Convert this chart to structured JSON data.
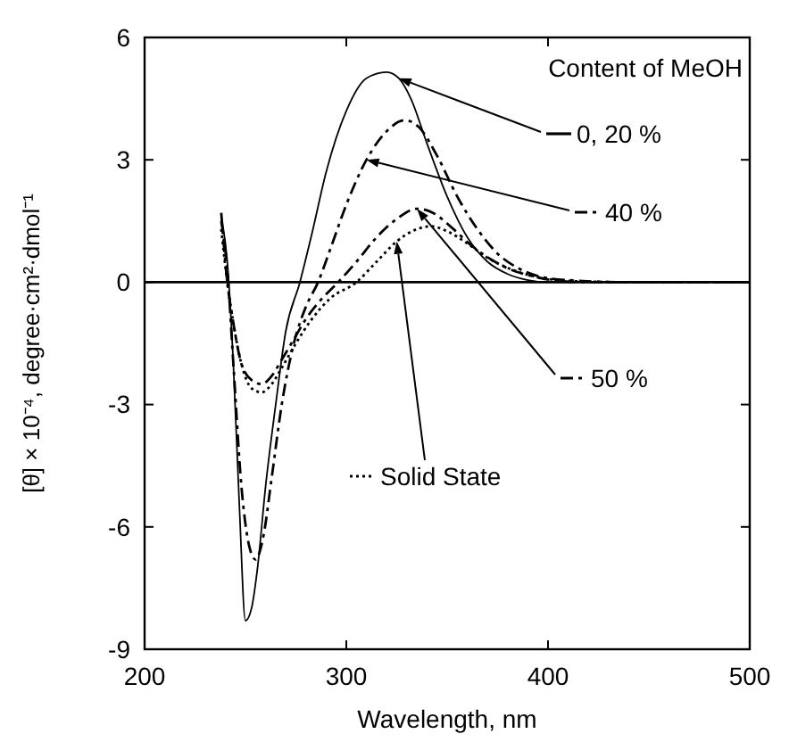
{
  "chart_data": {
    "type": "line",
    "xlabel": "Wavelength, nm",
    "ylabel": "[θ] × 10⁻⁴, degree·cm²·dmol⁻¹",
    "legend_title": "Content of MeOH",
    "xlim": [
      200,
      500
    ],
    "ylim": [
      -9,
      6
    ],
    "xticks": [
      200,
      300,
      400,
      500
    ],
    "yticks": [
      -9,
      -6,
      -3,
      0,
      3,
      6
    ],
    "grid": false,
    "legend": "right",
    "ref_lines": [
      {
        "axis": "y",
        "value": 0,
        "color": "#000000"
      }
    ],
    "series": [
      {
        "name": "0, 20 %",
        "color": "#000000",
        "line_style": "solid",
        "x": [
          238,
          241,
          244,
          247,
          250,
          253,
          256,
          260,
          265,
          270,
          277,
          283,
          290,
          300,
          310,
          320,
          326,
          332,
          340,
          350,
          360,
          370,
          380,
          390,
          400,
          420,
          450,
          480,
          500
        ],
        "values": [
          1.6,
          0.5,
          -2,
          -5.5,
          -8.3,
          -8,
          -7,
          -5,
          -3,
          -1.2,
          0,
          1.2,
          2.7,
          4.2,
          5,
          5.15,
          5,
          4.5,
          3.4,
          2.1,
          1.1,
          0.5,
          0.2,
          0.05,
          0,
          0,
          0,
          0,
          0
        ]
      },
      {
        "name": "40 %",
        "color": "#000000",
        "line_style": "dashed",
        "x": [
          238,
          241,
          244,
          248,
          252,
          255,
          259,
          263,
          268,
          274,
          280,
          286,
          292,
          300,
          310,
          320,
          329,
          336,
          345,
          355,
          365,
          375,
          385,
          395,
          410,
          440,
          470,
          500
        ],
        "values": [
          1.5,
          0.3,
          -2,
          -5,
          -6.5,
          -6.8,
          -6.2,
          -4.8,
          -3,
          -1.5,
          -0.6,
          0,
          0.8,
          1.9,
          3,
          3.7,
          3.97,
          3.8,
          3.1,
          2.1,
          1.3,
          0.7,
          0.35,
          0.15,
          0.05,
          0,
          0,
          0
        ]
      },
      {
        "name": "50 %",
        "color": "#000000",
        "line_style": "dashed",
        "x": [
          238,
          241,
          244,
          248,
          253,
          258,
          263,
          268,
          274,
          280,
          288,
          296,
          305,
          315,
          325,
          335,
          343,
          352,
          362,
          372,
          382,
          392,
          402,
          420,
          450,
          480,
          500
        ],
        "values": [
          1.7,
          0,
          -1,
          -2,
          -2.4,
          -2.5,
          -2.3,
          -1.9,
          -1.4,
          -0.9,
          -0.4,
          0,
          0.5,
          1.1,
          1.55,
          1.8,
          1.7,
          1.35,
          0.9,
          0.55,
          0.3,
          0.15,
          0.05,
          0,
          0,
          0,
          0
        ]
      },
      {
        "name": "Solid State",
        "color": "#000000",
        "line_style": "dotted",
        "x": [
          238,
          241,
          244,
          248,
          253,
          258,
          263,
          268,
          275,
          283,
          292,
          305,
          315,
          325,
          335,
          342,
          350,
          360,
          370,
          380,
          390,
          400,
          415,
          440,
          470,
          500
        ],
        "values": [
          1.3,
          0,
          -1,
          -2,
          -2.6,
          -2.7,
          -2.5,
          -2.1,
          -1.5,
          -0.9,
          -0.4,
          0,
          0.5,
          1,
          1.3,
          1.37,
          1.25,
          0.95,
          0.6,
          0.35,
          0.18,
          0.08,
          0.02,
          0,
          0,
          0
        ]
      }
    ]
  }
}
